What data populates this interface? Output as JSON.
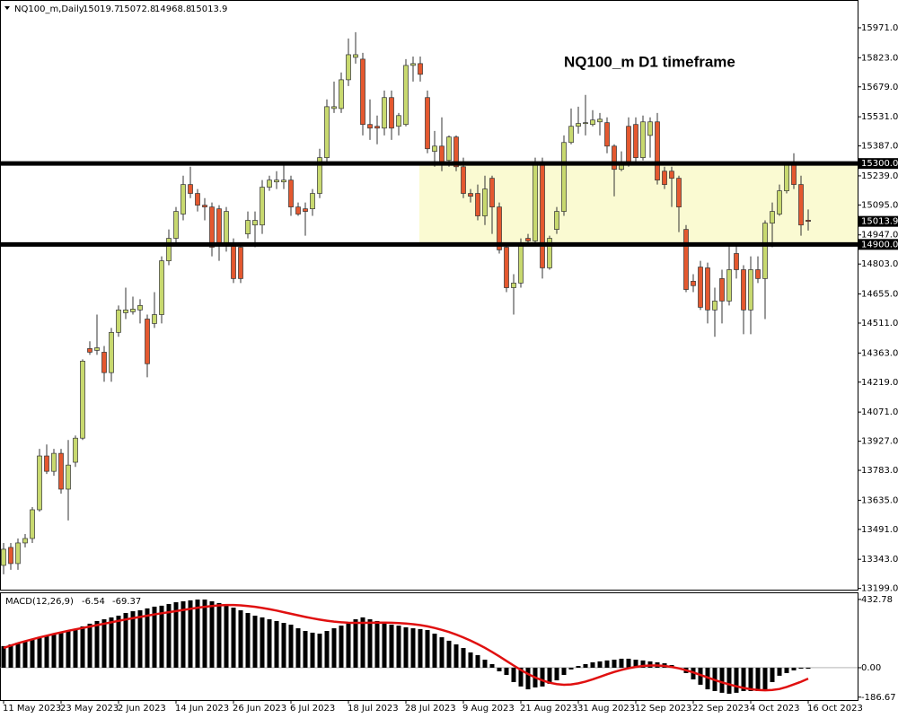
{
  "chart_data": {
    "type": "candlestick",
    "symbol": "NQ100_m,Daily",
    "annotation": "NQ100_m D1 timeframe",
    "colors": {
      "up": "#c8d96f",
      "down": "#e4582f",
      "outline": "#333333",
      "zone": "#fafad2"
    },
    "ylim": [
      13193,
      16104
    ],
    "yticks": [
      {
        "value": 15971,
        "label": "15971.0"
      },
      {
        "value": 15823,
        "label": "15823.0"
      },
      {
        "value": 15679,
        "label": "15679.0"
      },
      {
        "value": 15531,
        "label": "15531.0"
      },
      {
        "value": 15387,
        "label": "15387.0"
      },
      {
        "value": 15239,
        "label": "15239.0"
      },
      {
        "value": 15095,
        "label": "15095.0"
      },
      {
        "value": 14947,
        "label": "14947.0"
      },
      {
        "value": 14803,
        "label": "14803.0"
      },
      {
        "value": 14655,
        "label": "14655.0"
      },
      {
        "value": 14511,
        "label": "14511.0"
      },
      {
        "value": 14363,
        "label": "14363.0"
      },
      {
        "value": 14219,
        "label": "14219.0"
      },
      {
        "value": 14071,
        "label": "14071.0"
      },
      {
        "value": 13927,
        "label": "13927.0"
      },
      {
        "value": 13783,
        "label": "13783.0"
      },
      {
        "value": 13635,
        "label": "13635.0"
      },
      {
        "value": 13491,
        "label": "13491.0"
      },
      {
        "value": 13343,
        "label": "13343.0"
      },
      {
        "value": 13199,
        "label": "13199.0"
      }
    ],
    "levels": [
      {
        "value": 15300,
        "label": "15300.0"
      },
      {
        "value": 14900,
        "label": "14900.0"
      }
    ],
    "xticks": [
      {
        "value": 0,
        "label": "11 May 2023"
      },
      {
        "value": 8,
        "label": "23 May 2023"
      },
      {
        "value": 16,
        "label": "2 Jun 2023"
      },
      {
        "value": 24,
        "label": "14 Jun 2023"
      },
      {
        "value": 32,
        "label": "26 Jun 2023"
      },
      {
        "value": 40,
        "label": "6 Jul 2023"
      },
      {
        "value": 48,
        "label": "18 Jul 2023"
      },
      {
        "value": 56,
        "label": "28 Jul 2023"
      },
      {
        "value": 64,
        "label": "9 Aug 2023"
      },
      {
        "value": 72,
        "label": "21 Aug 2023"
      },
      {
        "value": 80,
        "label": "31 Aug 2023"
      },
      {
        "value": 88,
        "label": "12 Sep 2023"
      },
      {
        "value": 96,
        "label": "22 Sep 2023"
      },
      {
        "value": 104,
        "label": "4 Oct 2023"
      },
      {
        "value": 112,
        "label": "16 Oct 2023"
      }
    ],
    "ohlc": [
      [
        13313,
        13424,
        13269,
        13393
      ],
      [
        13402,
        13424,
        13291,
        13322
      ],
      [
        13322,
        13446,
        13291,
        13424
      ],
      [
        13424,
        13468,
        13402,
        13446
      ],
      [
        13446,
        13601,
        13424,
        13588
      ],
      [
        13588,
        13889,
        13579,
        13854
      ],
      [
        13854,
        13911,
        13765,
        13778
      ],
      [
        13778,
        13889,
        13756,
        13867
      ],
      [
        13867,
        13889,
        13668,
        13690
      ],
      [
        13690,
        13933,
        13535,
        13809
      ],
      [
        13823,
        13955,
        13800,
        13942
      ],
      [
        13942,
        14332,
        13933,
        14323
      ],
      [
        14385,
        14421,
        14354,
        14367
      ],
      [
        14376,
        14553,
        14354,
        14389
      ],
      [
        14367,
        14398,
        14221,
        14266
      ],
      [
        14266,
        14487,
        14221,
        14465
      ],
      [
        14465,
        14598,
        14443,
        14576
      ],
      [
        14562,
        14686,
        14531,
        14576
      ],
      [
        14567,
        14642,
        14553,
        14580
      ],
      [
        14576,
        14629,
        14509,
        14598
      ],
      [
        14531,
        14553,
        14243,
        14310
      ],
      [
        14509,
        14664,
        14487,
        14553
      ],
      [
        14553,
        14841,
        14509,
        14819
      ],
      [
        14819,
        14974,
        14797,
        14930
      ],
      [
        14930,
        15085,
        14908,
        15063
      ],
      [
        15050,
        15240,
        15019,
        15196
      ],
      [
        15196,
        15284,
        15129,
        15152
      ],
      [
        15152,
        15174,
        15063,
        15094
      ],
      [
        15094,
        15129,
        15019,
        15085
      ],
      [
        15085,
        15107,
        14841,
        14886
      ],
      [
        15076,
        15094,
        14819,
        14908
      ],
      [
        14908,
        15085,
        14864,
        15063
      ],
      [
        14908,
        14930,
        14709,
        14731
      ],
      [
        14886,
        14908,
        14709,
        14731
      ],
      [
        14952,
        15063,
        14930,
        15019
      ],
      [
        14996,
        15063,
        14886,
        15019
      ],
      [
        14996,
        15218,
        14952,
        15183
      ],
      [
        15183,
        15240,
        15165,
        15218
      ],
      [
        15209,
        15262,
        15174,
        15218
      ],
      [
        15209,
        15297,
        15174,
        15218
      ],
      [
        15218,
        15240,
        15041,
        15085
      ],
      [
        15085,
        15107,
        15041,
        15050
      ],
      [
        15076,
        15107,
        14943,
        15063
      ],
      [
        15076,
        15174,
        15041,
        15152
      ],
      [
        15152,
        15373,
        15129,
        15329
      ],
      [
        15329,
        15617,
        15307,
        15581
      ],
      [
        15572,
        15705,
        15550,
        15581
      ],
      [
        15572,
        15750,
        15550,
        15714
      ],
      [
        15714,
        15918,
        15683,
        15838
      ],
      [
        15825,
        15949,
        15794,
        15838
      ],
      [
        15816,
        15847,
        15439,
        15493
      ],
      [
        15493,
        15617,
        15417,
        15475
      ],
      [
        15484,
        15537,
        15395,
        15475
      ],
      [
        15475,
        15661,
        15439,
        15626
      ],
      [
        15626,
        15661,
        15417,
        15475
      ],
      [
        15484,
        15550,
        15439,
        15537
      ],
      [
        15493,
        15816,
        15484,
        15785
      ],
      [
        15785,
        15829,
        15705,
        15794
      ],
      [
        15794,
        15829,
        15705,
        15741
      ],
      [
        15626,
        15661,
        15351,
        15373
      ],
      [
        15360,
        15461,
        15284,
        15386
      ],
      [
        15386,
        15528,
        15262,
        15297
      ],
      [
        15315,
        15439,
        15284,
        15431
      ],
      [
        15431,
        15439,
        15262,
        15284
      ],
      [
        15284,
        15329,
        15129,
        15152
      ],
      [
        15152,
        15174,
        15107,
        15138
      ],
      [
        15152,
        15196,
        15019,
        15041
      ],
      [
        15041,
        15240,
        14996,
        15174
      ],
      [
        15227,
        15240,
        14952,
        15085
      ],
      [
        15085,
        15107,
        14855,
        14873
      ],
      [
        14886,
        14908,
        14664,
        14686
      ],
      [
        14686,
        14753,
        14553,
        14709
      ],
      [
        14709,
        14930,
        14686,
        14908
      ],
      [
        14930,
        14952,
        14899,
        14917
      ],
      [
        14917,
        15329,
        14908,
        15297
      ],
      [
        15297,
        15329,
        14731,
        14784
      ],
      [
        14784,
        14943,
        14775,
        14930
      ],
      [
        14974,
        15085,
        14952,
        15063
      ],
      [
        15063,
        15439,
        15041,
        15404
      ],
      [
        15404,
        15572,
        15395,
        15484
      ],
      [
        15484,
        15581,
        15448,
        15498
      ],
      [
        15498,
        15639,
        15439,
        15502
      ],
      [
        15493,
        15564,
        15484,
        15515
      ],
      [
        15506,
        15550,
        15439,
        15519
      ],
      [
        15502,
        15528,
        15351,
        15386
      ],
      [
        15386,
        15395,
        15138,
        15271
      ],
      [
        15271,
        15360,
        15262,
        15307
      ],
      [
        15484,
        15528,
        15284,
        15307
      ],
      [
        15493,
        15528,
        15297,
        15329
      ],
      [
        15329,
        15537,
        15315,
        15506
      ],
      [
        15439,
        15528,
        15329,
        15506
      ],
      [
        15506,
        15550,
        15196,
        15218
      ],
      [
        15262,
        15284,
        15174,
        15196
      ],
      [
        15262,
        15284,
        15085,
        15227
      ],
      [
        15227,
        15240,
        14961,
        15085
      ],
      [
        14974,
        14996,
        14664,
        14677
      ],
      [
        14718,
        14753,
        14664,
        14696
      ],
      [
        14788,
        14819,
        14576,
        14589
      ],
      [
        14784,
        14810,
        14509,
        14576
      ],
      [
        14576,
        14686,
        14443,
        14620
      ],
      [
        14731,
        14775,
        14509,
        14620
      ],
      [
        14620,
        14908,
        14598,
        14775
      ],
      [
        14855,
        14899,
        14731,
        14775
      ],
      [
        14775,
        14797,
        14456,
        14576
      ],
      [
        14576,
        14841,
        14456,
        14775
      ],
      [
        14775,
        14841,
        14709,
        14731
      ],
      [
        14731,
        15019,
        14531,
        15005
      ],
      [
        15005,
        15107,
        14886,
        15063
      ],
      [
        15050,
        15196,
        15041,
        15165
      ],
      [
        15165,
        15307,
        15152,
        15293
      ],
      [
        15293,
        15351,
        15174,
        15196
      ],
      [
        15196,
        15240,
        14943,
        14996
      ],
      [
        15019.7,
        15072.8,
        14968.8,
        15013.9
      ]
    ],
    "macd": {
      "name": "MACD(12,26,9)",
      "ylim": [
        -205,
        472
      ],
      "yticks": [
        432.78,
        {
          "value": 0,
          "label": "0.00"
        },
        -186.67
      ],
      "hist_color": "#000000",
      "signal_color": "#e01010",
      "histogram": [
        137,
        148,
        159,
        165,
        176,
        188,
        205,
        216,
        222,
        233,
        245,
        262,
        279,
        296,
        307,
        319,
        330,
        347,
        358,
        364,
        376,
        387,
        393,
        404,
        415,
        421,
        427,
        432,
        432,
        421,
        410,
        398,
        381,
        364,
        347,
        330,
        319,
        307,
        296,
        284,
        273,
        250,
        233,
        222,
        216,
        233,
        250,
        267,
        284,
        307,
        319,
        307,
        296,
        284,
        273,
        267,
        256,
        250,
        245,
        239,
        216,
        193,
        171,
        148,
        125,
        97,
        80,
        51,
        23,
        -23,
        -46,
        -91,
        -119,
        -137,
        -125,
        -119,
        -102,
        -80,
        -46,
        -11,
        11,
        23,
        34,
        40,
        46,
        51,
        57,
        57,
        51,
        46,
        40,
        34,
        28,
        17,
        -6,
        -34,
        -74,
        -108,
        -137,
        -148,
        -159,
        -165,
        -159,
        -148,
        -148,
        -148,
        -137,
        -91,
        -51,
        -34,
        -17,
        -6,
        -6.54
      ],
      "signal": [
        125,
        140,
        155,
        168,
        180,
        192,
        203,
        214,
        224,
        234,
        243,
        252,
        261,
        270,
        279,
        288,
        297,
        306,
        314,
        322,
        330,
        338,
        345,
        352,
        359,
        366,
        373,
        380,
        386,
        391,
        395,
        397,
        397,
        395,
        391,
        386,
        379,
        371,
        362,
        352,
        342,
        332,
        322,
        313,
        305,
        298,
        292,
        288,
        285,
        284,
        284,
        285,
        286,
        286,
        285,
        283,
        280,
        276,
        270,
        262,
        252,
        240,
        226,
        210,
        192,
        172,
        150,
        126,
        100,
        72,
        43,
        14,
        -14,
        -40,
        -62,
        -80,
        -95,
        -104,
        -108,
        -106,
        -99,
        -88,
        -74,
        -58,
        -42,
        -27,
        -14,
        -3,
        5,
        11,
        14,
        14,
        11,
        5,
        -4,
        -16,
        -30,
        -46,
        -62,
        -78,
        -93,
        -106,
        -118,
        -128,
        -136,
        -141,
        -143,
        -141,
        -135,
        -122,
        -106,
        -89,
        -69.37
      ]
    }
  }
}
